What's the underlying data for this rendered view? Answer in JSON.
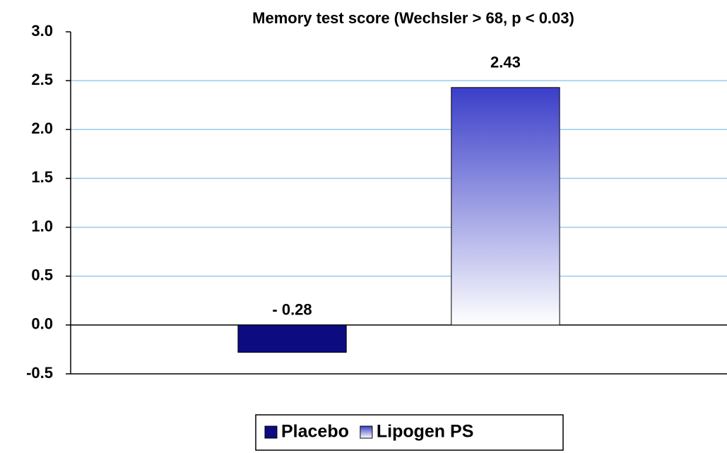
{
  "chart_data": {
    "type": "bar",
    "title": "Memory test score (Wechsler > 68, p < 0.03)",
    "categories": [
      null
    ],
    "series": [
      {
        "name": "Placebo",
        "color": "#0c0c80",
        "values": [
          -0.28
        ],
        "value_labels": [
          "- 0.28"
        ]
      },
      {
        "name": "Lipogen PS",
        "color": "#3a3ec8",
        "values": [
          2.43
        ],
        "value_labels": [
          "2.43"
        ]
      }
    ],
    "ylim": [
      -0.5,
      3.0
    ],
    "yticks": [
      -0.5,
      {
        "value": 0,
        "label": "0.0"
      },
      0.5,
      {
        "value": 1,
        "label": "1.0"
      },
      1.5,
      {
        "value": 2,
        "label": "2.0"
      },
      2.5,
      {
        "value": 3,
        "label": "3.0"
      }
    ],
    "grid": true,
    "legend": "bottom"
  }
}
